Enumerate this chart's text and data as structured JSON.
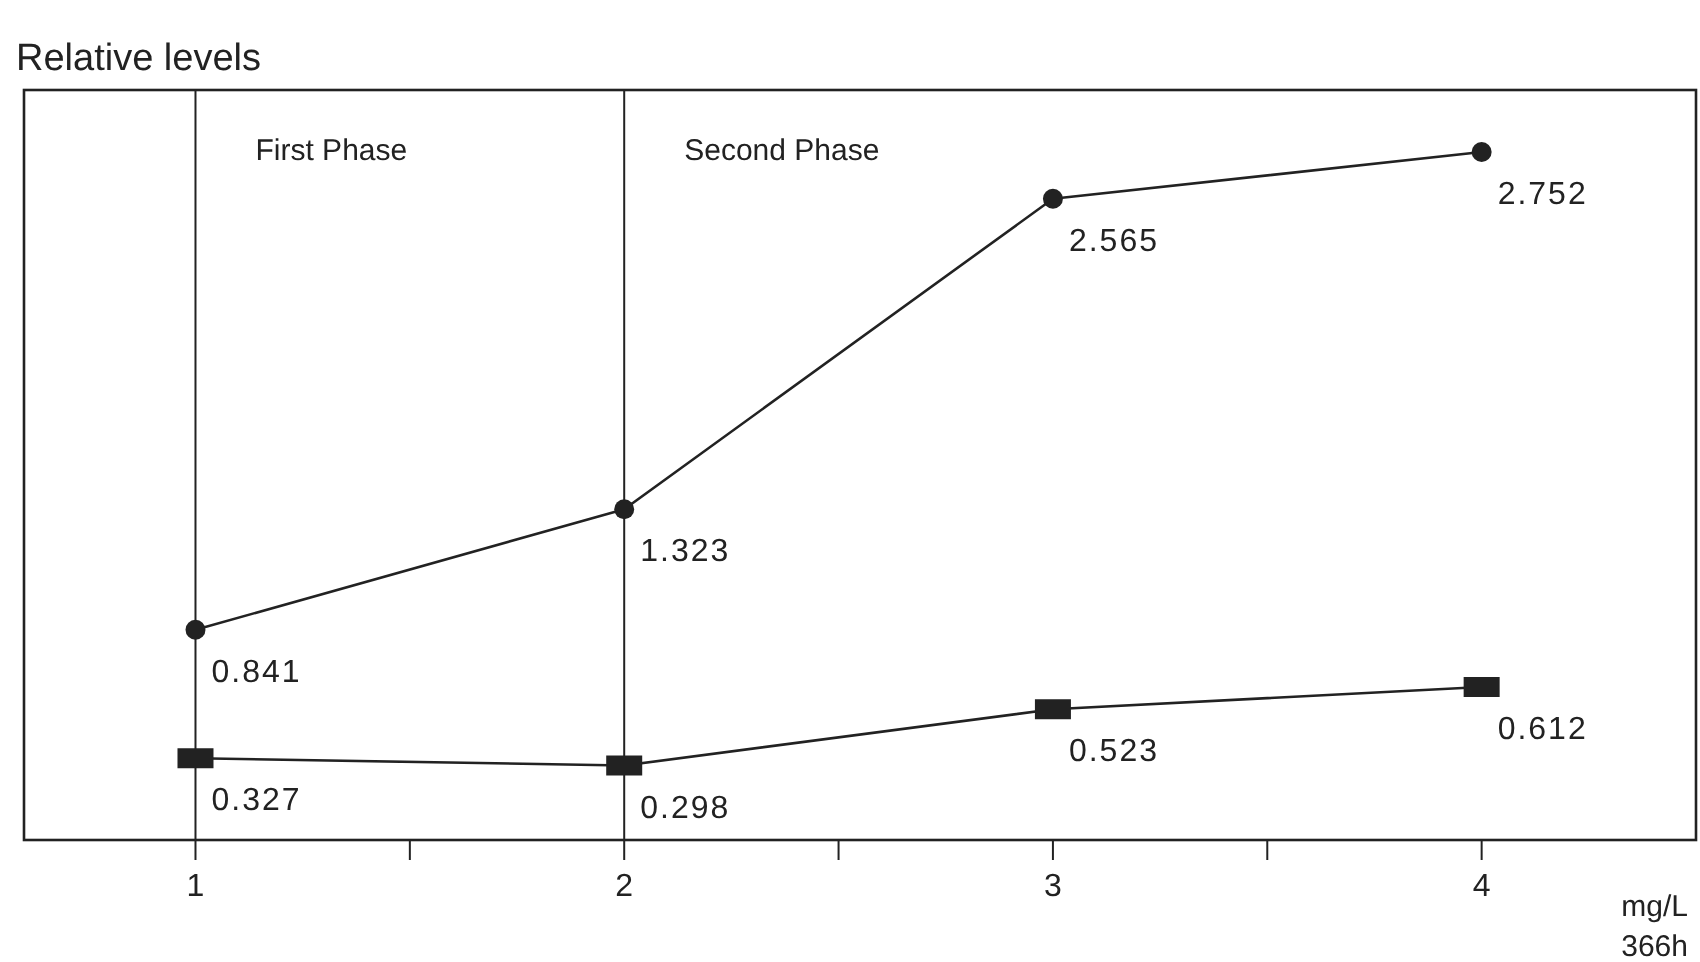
{
  "chart_data": {
    "type": "line",
    "ylabel": "Relative levels",
    "xlabel": "mg/L",
    "annotations": [
      "366h"
    ],
    "x": [
      1,
      2,
      3,
      4
    ],
    "series": [
      {
        "color": "#222222",
        "marker": "circle",
        "values": [
          0.841,
          1.323,
          2.565,
          2.752
        ]
      },
      {
        "color": "#222222",
        "marker": "square",
        "values": [
          0.327,
          0.298,
          0.523,
          0.612
        ]
      }
    ],
    "xlim": [
      0.6,
      4.5
    ],
    "xticks": [
      1,
      {
        "value": 1.5,
        "label": null
      },
      2,
      {
        "value": 2.5,
        "label": null
      },
      3,
      {
        "value": 3.5,
        "label": null
      },
      4
    ],
    "ylim": [
      0,
      3
    ],
    "tick_labels": "x",
    "grid": false,
    "data_labels": true,
    "line_style": "solid",
    "ref_lines": [
      {
        "axis": "x",
        "value": 1,
        "label": "First Phase",
        "color": "#222222"
      },
      {
        "axis": "x",
        "value": 2,
        "label": "Second Phase",
        "color": "#222222"
      }
    ]
  }
}
